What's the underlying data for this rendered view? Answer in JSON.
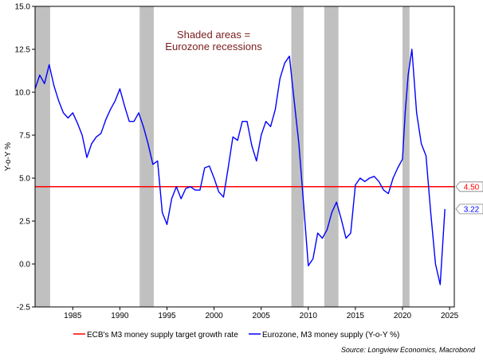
{
  "chart_data": {
    "type": "line",
    "title": "",
    "xlabel": "",
    "ylabel": "Y-o-Y %",
    "xlim": [
      1981.0,
      2025.5
    ],
    "ylim": [
      -2.5,
      15.0
    ],
    "x_ticks": [
      1985,
      1990,
      1995,
      2000,
      2005,
      2010,
      2015,
      2020,
      2025
    ],
    "y_ticks": [
      "-2.5",
      "0.0",
      "2.5",
      "5.0",
      "7.5",
      "10.0",
      "12.5",
      "15.0"
    ],
    "grid": false,
    "annotation": [
      "Shaded areas =",
      "Eurozone recessions"
    ],
    "recessions": [
      [
        1981.0,
        1982.6
      ],
      [
        1992.1,
        1993.6
      ],
      [
        2008.2,
        2009.5
      ],
      [
        2011.7,
        2013.2
      ],
      [
        2020.0,
        2020.75
      ]
    ],
    "series": [
      {
        "name": "ECB's M3 money supply target growth rate",
        "color": "#ff0000",
        "x": [
          1981.0,
          2025.5
        ],
        "y": [
          4.5,
          4.5
        ],
        "end_label": "4.50"
      },
      {
        "name": "Eurozone, M3 money supply (Y-o-Y %)",
        "color": "#0000ff",
        "end_label": "3.22",
        "x": [
          1981.0,
          1981.5,
          1982.0,
          1982.5,
          1983.0,
          1983.5,
          1984.0,
          1984.5,
          1985.0,
          1985.5,
          1986.0,
          1986.5,
          1987.0,
          1987.5,
          1988.0,
          1988.5,
          1989.0,
          1989.5,
          1990.0,
          1990.5,
          1991.0,
          1991.5,
          1992.0,
          1992.5,
          1993.0,
          1993.5,
          1994.0,
          1994.5,
          1995.0,
          1995.5,
          1996.0,
          1996.5,
          1997.0,
          1997.5,
          1998.0,
          1998.5,
          1999.0,
          1999.5,
          2000.0,
          2000.5,
          2001.0,
          2001.5,
          2002.0,
          2002.5,
          2003.0,
          2003.5,
          2004.0,
          2004.5,
          2005.0,
          2005.5,
          2006.0,
          2006.5,
          2007.0,
          2007.5,
          2008.0,
          2008.5,
          2009.0,
          2009.5,
          2010.0,
          2010.5,
          2011.0,
          2011.5,
          2012.0,
          2012.5,
          2013.0,
          2013.5,
          2014.0,
          2014.5,
          2015.0,
          2015.5,
          2016.0,
          2016.5,
          2017.0,
          2017.5,
          2018.0,
          2018.5,
          2019.0,
          2019.5,
          2020.0,
          2020.3,
          2020.6,
          2021.0,
          2021.5,
          2022.0,
          2022.5,
          2023.0,
          2023.5,
          2024.0,
          2024.5
        ],
        "y": [
          10.2,
          11.0,
          10.5,
          11.6,
          10.4,
          9.5,
          8.8,
          8.5,
          8.8,
          8.2,
          7.5,
          6.2,
          7.0,
          7.4,
          7.6,
          8.4,
          9.0,
          9.5,
          10.2,
          9.2,
          8.3,
          8.3,
          8.8,
          8.0,
          7.0,
          5.8,
          6.0,
          3.0,
          2.3,
          3.8,
          4.5,
          3.8,
          4.4,
          4.5,
          4.3,
          4.3,
          5.6,
          5.7,
          5.0,
          4.2,
          3.9,
          5.6,
          7.4,
          7.2,
          8.3,
          8.3,
          6.9,
          6.0,
          7.5,
          8.3,
          8.0,
          9.0,
          10.8,
          11.7,
          12.1,
          9.5,
          7.0,
          3.5,
          -0.1,
          0.3,
          1.8,
          1.5,
          2.0,
          3.0,
          3.6,
          2.6,
          1.5,
          1.8,
          4.6,
          5.0,
          4.8,
          5.0,
          5.1,
          4.8,
          4.3,
          4.1,
          5.0,
          5.6,
          6.1,
          8.9,
          11.0,
          12.5,
          8.8,
          7.0,
          6.3,
          3.0,
          0.0,
          -1.2,
          3.2
        ]
      }
    ],
    "source": "Source: Longview Economics, Macrobond"
  }
}
